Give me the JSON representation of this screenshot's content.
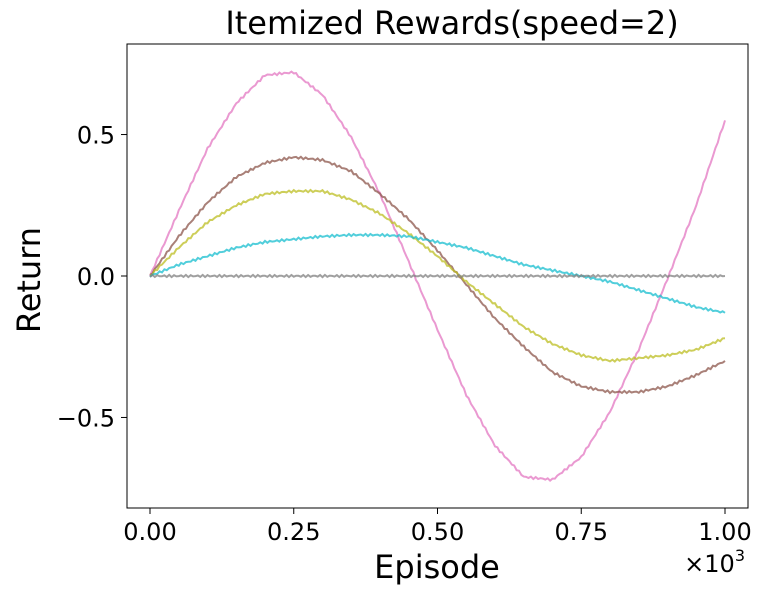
{
  "chart_data": {
    "type": "line",
    "title": "Itemized Rewards(speed=2)",
    "xlabel": "Episode",
    "ylabel": "Return",
    "x_offset_text": "×10",
    "x_offset_exp": "3",
    "xlim": [
      -0.04,
      1.04
    ],
    "ylim": [
      -0.82,
      0.82
    ],
    "xticks": [
      0.0,
      0.25,
      0.5,
      0.75,
      1.0
    ],
    "xtick_labels": [
      "0.00",
      "0.25",
      "0.50",
      "0.75",
      "1.00"
    ],
    "yticks": [
      -0.5,
      0.0,
      0.5
    ],
    "ytick_labels": [
      "−0.5",
      "0.0",
      "0.5"
    ],
    "grid": false,
    "legend": "none",
    "x": [
      0.0,
      0.05,
      0.1,
      0.15,
      0.2,
      0.25,
      0.3,
      0.35,
      0.4,
      0.45,
      0.5,
      0.55,
      0.6,
      0.65,
      0.7,
      0.75,
      0.8,
      0.85,
      0.9,
      0.95,
      1.0
    ],
    "series": [
      {
        "color": "#e377c2",
        "values": [
          0.0,
          0.23,
          0.45,
          0.61,
          0.71,
          0.72,
          0.64,
          0.49,
          0.29,
          0.05,
          -0.19,
          -0.42,
          -0.6,
          -0.71,
          -0.72,
          -0.64,
          -0.48,
          -0.26,
          -0.01,
          0.25,
          0.55
        ]
      },
      {
        "color": "#8c564b",
        "values": [
          0.0,
          0.14,
          0.26,
          0.35,
          0.4,
          0.42,
          0.41,
          0.37,
          0.29,
          0.2,
          0.09,
          -0.03,
          -0.15,
          -0.25,
          -0.34,
          -0.39,
          -0.41,
          -0.41,
          -0.39,
          -0.35,
          -0.3
        ]
      },
      {
        "color": "#bcbd22",
        "values": [
          0.0,
          0.1,
          0.19,
          0.25,
          0.29,
          0.3,
          0.3,
          0.27,
          0.22,
          0.15,
          0.07,
          -0.02,
          -0.1,
          -0.18,
          -0.24,
          -0.28,
          -0.3,
          -0.29,
          -0.28,
          -0.26,
          -0.22
        ]
      },
      {
        "color": "#17becf",
        "values": [
          0.0,
          0.04,
          0.07,
          0.1,
          0.12,
          0.13,
          0.14,
          0.145,
          0.145,
          0.14,
          0.12,
          0.1,
          0.07,
          0.04,
          0.02,
          0.0,
          -0.02,
          -0.05,
          -0.08,
          -0.11,
          -0.13
        ]
      },
      {
        "color": "#7f7f7f",
        "values": [
          0.0,
          0.0,
          0.0,
          0.0,
          0.0,
          0.0,
          0.0,
          0.0,
          0.0,
          0.0,
          0.0,
          0.0,
          0.0,
          0.0,
          0.0,
          0.0,
          0.0,
          0.0,
          0.0,
          0.0,
          0.0
        ]
      }
    ]
  }
}
